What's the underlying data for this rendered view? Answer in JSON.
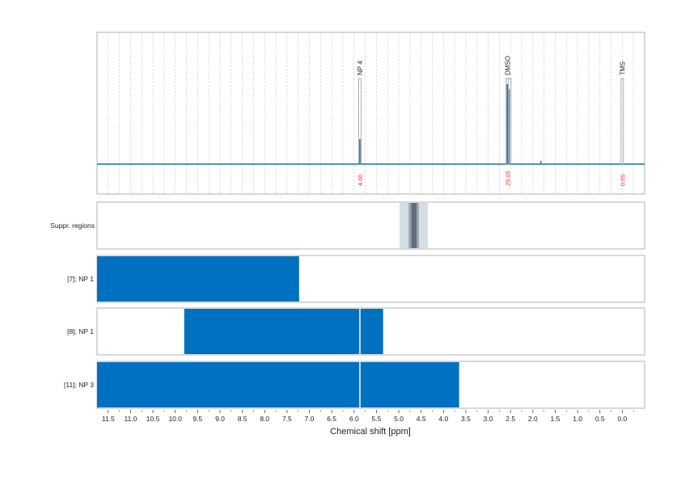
{
  "chart_data": {
    "type": "line",
    "xlabel": "Chemical shift [ppm]",
    "xlim": [
      11.75,
      -0.5
    ],
    "x_ticks": [
      "11.5",
      "11.0",
      "10.5",
      "10.0",
      "9.5",
      "9.0",
      "8.5",
      "8.0",
      "7.5",
      "7.0",
      "6.5",
      "6.0",
      "5.5",
      "5.0",
      "4.5",
      "4.0",
      "3.5",
      "3.0",
      "2.5",
      "2.0",
      "1.5",
      "1.0",
      "0.5",
      "0.0"
    ],
    "grid": true,
    "colors": {
      "signal": "#1f6fa8",
      "bar": "#0070c0",
      "frame": "#b0b0b0",
      "integral": "#e03030",
      "suppr_light": "#d5dde5",
      "suppr_mid": "#9aa8b4",
      "suppr_dark": "#5f6e7a",
      "separator": "#c8d8e6"
    },
    "spectrum": {
      "peaks": [
        {
          "label": "NP 4",
          "ppm": 5.87,
          "height": 0.3,
          "integral": "4.00"
        },
        {
          "label": "DMSO",
          "ppm": 2.57,
          "height": 0.96,
          "integral": "29.05"
        },
        {
          "label": "TMS",
          "ppm": 0.0,
          "height": 0.0,
          "integral": "0.05"
        }
      ],
      "minor_peaks": [
        {
          "ppm": 2.53,
          "height": 0.9
        },
        {
          "ppm": 1.82,
          "height": 0.04
        }
      ]
    },
    "suppressed_regions": {
      "label": "Suppr. regions",
      "light": [
        4.98,
        4.35
      ],
      "mid": [
        4.78,
        4.55
      ],
      "dark": [
        4.72,
        4.6
      ]
    },
    "series": [
      {
        "name": "[7]; NP 1",
        "ranges": [
          [
            11.75,
            7.23
          ]
        ],
        "separators": []
      },
      {
        "name": "[8]; NP 1",
        "ranges": [
          [
            9.8,
            5.35
          ]
        ],
        "separators": [
          5.87
        ]
      },
      {
        "name": "[11]; NP 3",
        "ranges": [
          [
            11.75,
            3.65
          ]
        ],
        "separators": [
          5.87
        ]
      }
    ]
  }
}
